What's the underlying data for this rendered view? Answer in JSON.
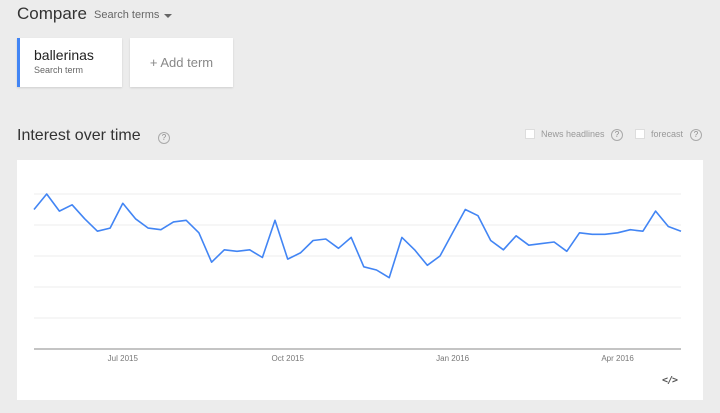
{
  "header": {
    "title": "Compare",
    "dropdown_label": "Search terms"
  },
  "terms": [
    {
      "name": "ballerinas",
      "subtitle": "Search term",
      "color": "#4285f4"
    }
  ],
  "add_term_label": "+ Add term",
  "section": {
    "title": "Interest over time",
    "help_glyph": "?"
  },
  "options": {
    "news_headlines": {
      "label": "News headlines",
      "checked": false
    },
    "forecast": {
      "label": "forecast",
      "checked": false
    }
  },
  "embed_glyph": "</>",
  "chart_data": {
    "type": "line",
    "title": "",
    "xlabel": "",
    "ylabel": "",
    "ylim": [
      0,
      100
    ],
    "grid": true,
    "x_tick_labels": [
      "Jul 2015",
      "Oct 2015",
      "Jan 2016",
      "Apr 2016"
    ],
    "x_tick_index": [
      7,
      20,
      33,
      46
    ],
    "series": [
      {
        "color": "#4285f4",
        "values": [
          90,
          100,
          89,
          93,
          84,
          76,
          78,
          94,
          84,
          78,
          77,
          82,
          83,
          75,
          56,
          64,
          63,
          64,
          59,
          83,
          58,
          62,
          70,
          71,
          65,
          72,
          53,
          51,
          46,
          72,
          64,
          54,
          60,
          75,
          90,
          86,
          70,
          64,
          73,
          67,
          68,
          69,
          63,
          75,
          74,
          74,
          75,
          77,
          76,
          89,
          79,
          76
        ]
      }
    ]
  }
}
